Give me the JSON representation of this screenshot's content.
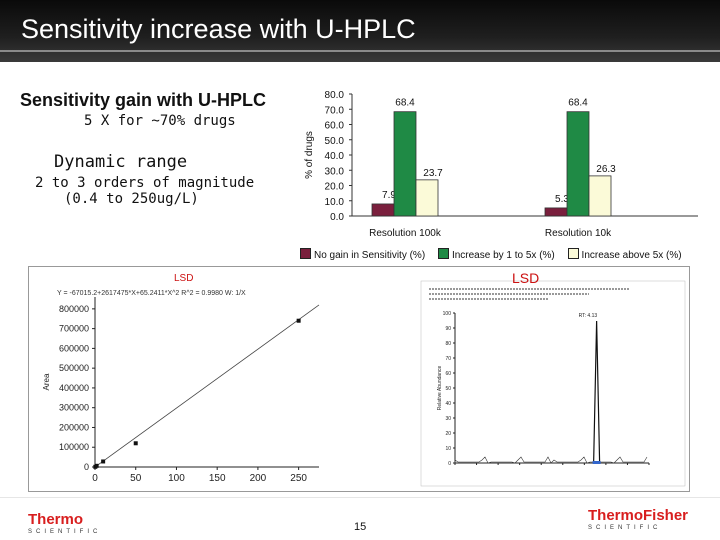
{
  "slide": {
    "title": "Sensitivity increase with U-HPLC",
    "heading1": "Sensitivity gain with U-HPLC",
    "sub1": "5 X for ~70% drugs",
    "heading2": "Dynamic range",
    "sub2a": "2 to 3 orders of magnitude",
    "sub2b": "(0.4 to 250ug/L)",
    "page_number": "15"
  },
  "logos": {
    "left": {
      "brand": "Thermo",
      "tag": "SCIENTIFIC"
    },
    "right": {
      "brand": "ThermoFisher",
      "tag": "SCIENTIFIC"
    }
  },
  "chart_data": [
    {
      "type": "bar",
      "ylabel": "% of drugs",
      "ylim": [
        0,
        80
      ],
      "yticks": [
        "0.0",
        "10.0",
        "20.0",
        "30.0",
        "40.0",
        "50.0",
        "60.0",
        "70.0",
        "80.0"
      ],
      "categories": [
        "Resolution 100k",
        "Resolution 10k"
      ],
      "series": [
        {
          "name": "No gain in Sensitivity (%)",
          "values": [
            7.9,
            5.3
          ],
          "color": "#7a1f3d"
        },
        {
          "name": "Increase by 1 to 5x (%)",
          "values": [
            68.4,
            68.4
          ],
          "color": "#1f8a45"
        },
        {
          "name": "Increase above 5x (%)",
          "values": [
            23.7,
            26.3
          ],
          "color": "#fbfad8"
        }
      ],
      "data_labels": [
        [
          "7.9",
          "68.4",
          "23.7"
        ],
        [
          "5.3",
          "68.4",
          "26.3"
        ]
      ],
      "legend": "bottom",
      "grid": false
    },
    {
      "type": "scatter",
      "title": "LSD",
      "equation": "Y = -67015.2+2617475*X+65.2411*X^2   R^2 = 0.9980   W: 1/X",
      "xticks": [
        "0",
        "50",
        "100",
        "150",
        "200",
        "250"
      ],
      "xlim": [
        0,
        275
      ],
      "yticks": [
        "0",
        "100000",
        "200000",
        "300000",
        "400000",
        "500000",
        "600000",
        "700000",
        "800000"
      ],
      "ylim": [
        0,
        860000
      ],
      "ylabel": "Area",
      "points": [
        [
          0.4,
          1000
        ],
        [
          2,
          6000
        ],
        [
          10,
          28000
        ],
        [
          50,
          120000
        ],
        [
          250,
          740000
        ]
      ]
    },
    {
      "type": "line",
      "title": "LSD",
      "ylabel": "Relative Abundance",
      "yticks": [
        "0",
        "10",
        "20",
        "30",
        "40",
        "50",
        "60",
        "70",
        "80",
        "90",
        "100"
      ],
      "peak_label": "RT: 4.13",
      "peak_at": 0.73
    }
  ]
}
